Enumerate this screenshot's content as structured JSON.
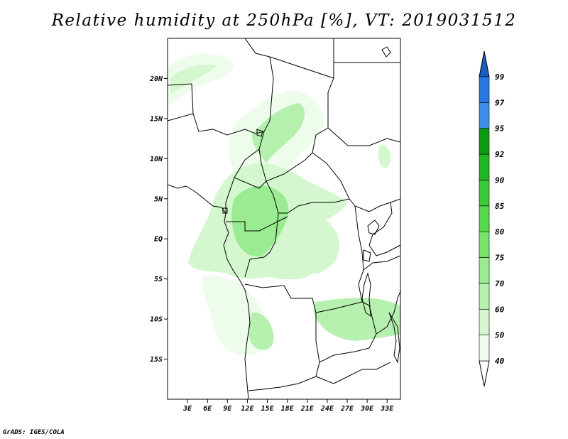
{
  "title": "Relative humidity at 250hPa [%], VT: 2019031512",
  "credit": "GrADS: IGES/COLA",
  "map": {
    "lon_range": [
      0,
      35
    ],
    "lat_range": [
      -20,
      25
    ],
    "lat_labels": [
      "20N",
      "15N",
      "10N",
      "5N",
      "EQ",
      "5S",
      "10S",
      "15S"
    ],
    "lat_values": [
      20,
      15,
      10,
      5,
      0,
      -5,
      -10,
      -15
    ],
    "lon_labels": [
      "3E",
      "6E",
      "9E",
      "12E",
      "15E",
      "18E",
      "21E",
      "24E",
      "27E",
      "30E",
      "33E"
    ],
    "lon_values": [
      3,
      6,
      9,
      12,
      15,
      18,
      21,
      24,
      27,
      30,
      33
    ]
  },
  "legend": {
    "levels": [
      "40",
      "50",
      "60",
      "70",
      "75",
      "80",
      "85",
      "90",
      "92",
      "95",
      "97",
      "99"
    ],
    "colors": [
      "#eefcec",
      "#d4f7cf",
      "#b6f0ae",
      "#9aeb91",
      "#78e26d",
      "#56d84c",
      "#3cc83a",
      "#22b624",
      "#0f9912",
      "#3c8ee6",
      "#2a78df",
      "#1c5bbf"
    ],
    "below_color": "#ffffff",
    "above_color": "#1c5bbf"
  }
}
